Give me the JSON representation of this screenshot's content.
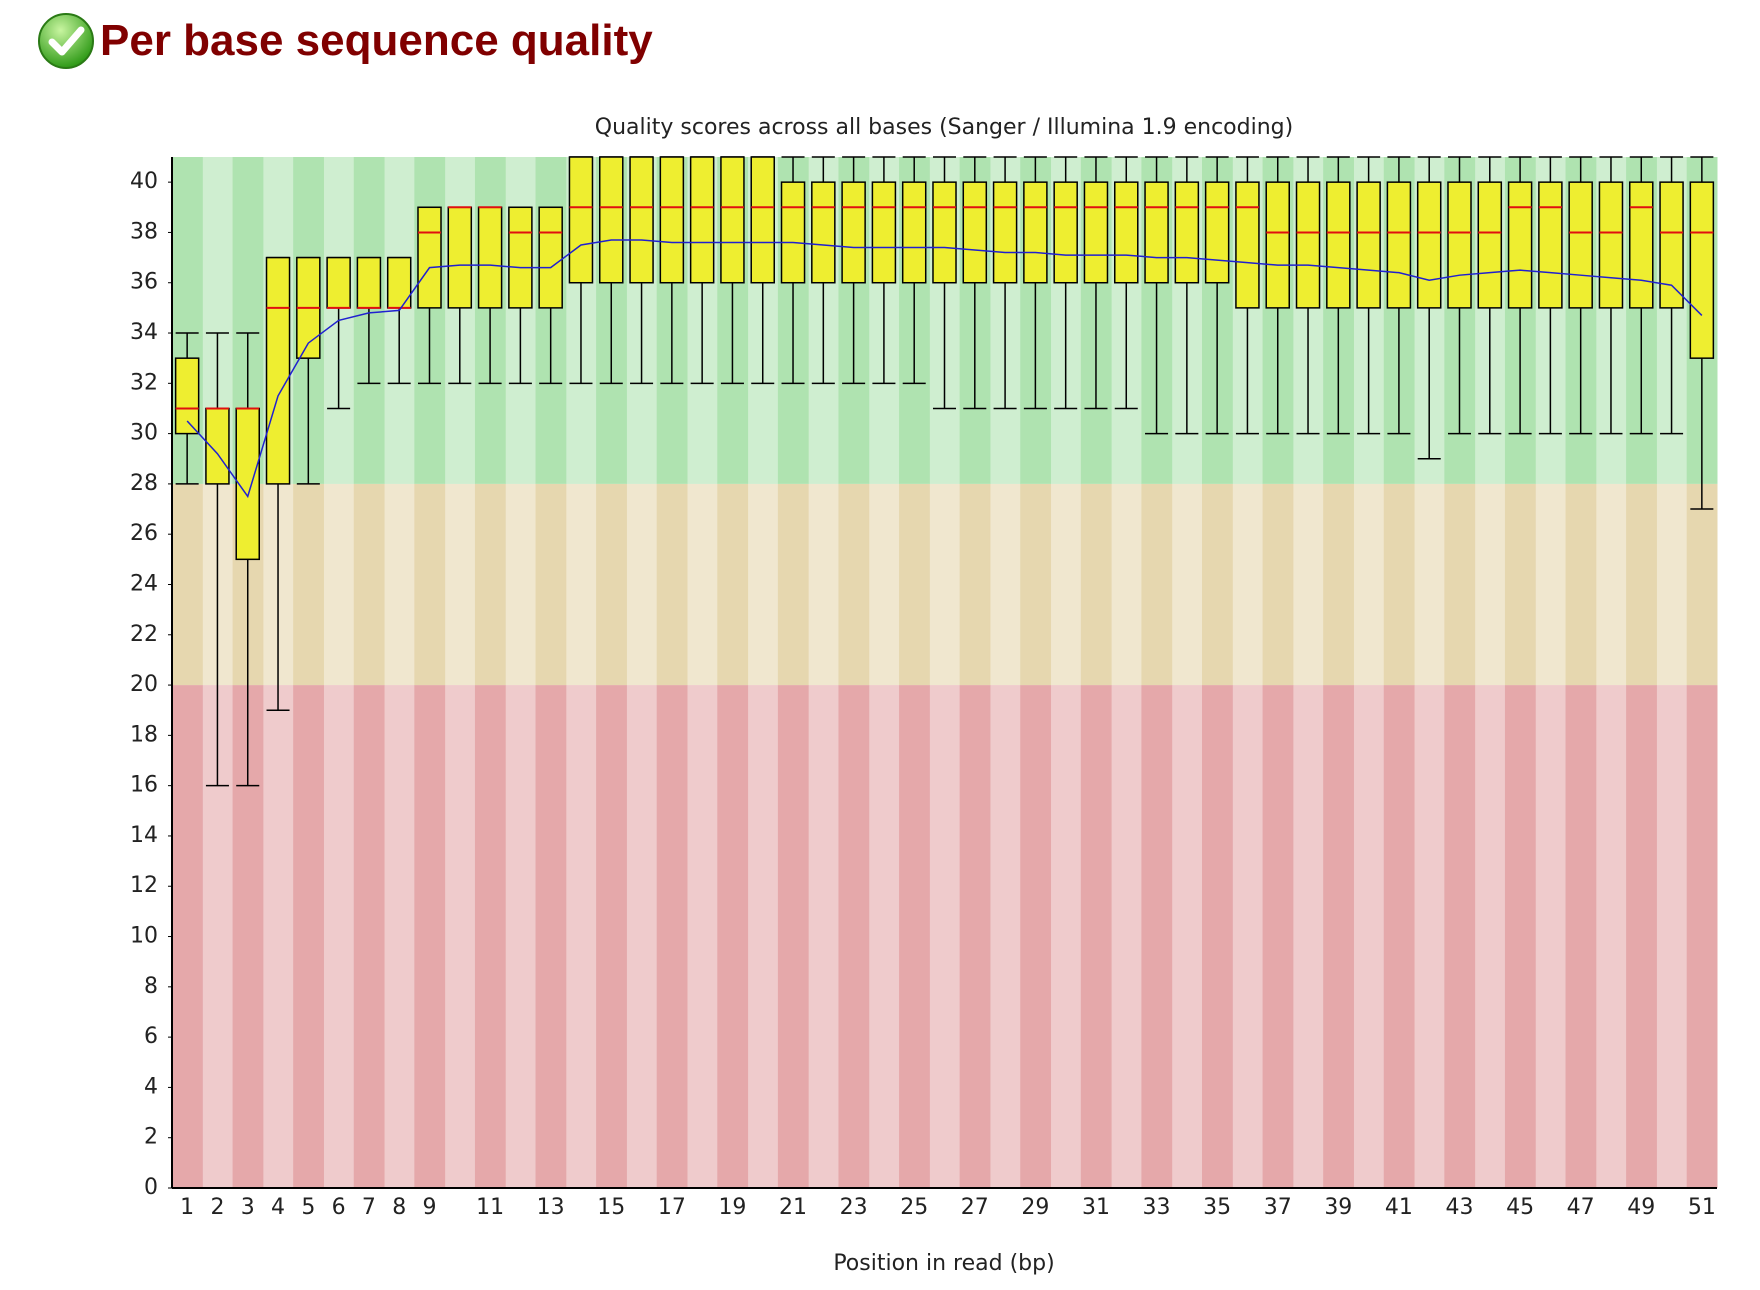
{
  "header": {
    "title": "Per base sequence quality"
  },
  "chart_data": {
    "type": "box",
    "title": "Quality scores across all bases (Sanger / Illumina 1.9 encoding)",
    "x_label": "Position in read (bp)",
    "categories": [
      1,
      2,
      3,
      4,
      5,
      6,
      7,
      8,
      9,
      null,
      11,
      null,
      13,
      null,
      15,
      null,
      17,
      null,
      19,
      null,
      21,
      null,
      23,
      null,
      25,
      null,
      27,
      null,
      29,
      null,
      31,
      null,
      33,
      null,
      35,
      null,
      37,
      null,
      39,
      null,
      41,
      null,
      43,
      null,
      45,
      null,
      47,
      null,
      49,
      null,
      51
    ],
    "lower_whisker": [
      28,
      16,
      16,
      19,
      28,
      31,
      32,
      32,
      32,
      32,
      32,
      32,
      32,
      32,
      32,
      32,
      32,
      32,
      32,
      32,
      32,
      32,
      32,
      32,
      32,
      31,
      31,
      31,
      31,
      31,
      31,
      31,
      30,
      30,
      30,
      30,
      30,
      30,
      30,
      30,
      30,
      29,
      30,
      30,
      30,
      30,
      30,
      30,
      30,
      30,
      27
    ],
    "q1": [
      30,
      28,
      25,
      28,
      33,
      35,
      35,
      35,
      35,
      35,
      35,
      35,
      35,
      36,
      36,
      36,
      36,
      36,
      36,
      36,
      36,
      36,
      36,
      36,
      36,
      36,
      36,
      36,
      36,
      36,
      36,
      36,
      36,
      36,
      36,
      35,
      35,
      35,
      35,
      35,
      35,
      35,
      35,
      35,
      35,
      35,
      35,
      35,
      35,
      35,
      33
    ],
    "median": [
      31,
      31,
      31,
      35,
      35,
      35,
      35,
      35,
      38,
      39,
      39,
      38,
      38,
      39,
      39,
      39,
      39,
      39,
      39,
      39,
      39,
      39,
      39,
      39,
      39,
      39,
      39,
      39,
      39,
      39,
      39,
      39,
      39,
      39,
      39,
      39,
      38,
      38,
      38,
      38,
      38,
      38,
      38,
      38,
      39,
      39,
      38,
      38,
      39,
      38,
      38
    ],
    "q3": [
      33,
      31,
      31,
      37,
      37,
      37,
      37,
      37,
      39,
      39,
      39,
      39,
      39,
      41,
      41,
      41,
      41,
      41,
      41,
      41,
      40,
      40,
      40,
      40,
      40,
      40,
      40,
      40,
      40,
      40,
      40,
      40,
      40,
      40,
      40,
      40,
      40,
      40,
      40,
      40,
      40,
      40,
      40,
      40,
      40,
      40,
      40,
      40,
      40,
      40,
      40
    ],
    "upper_whisker": [
      34,
      34,
      34,
      37,
      37,
      37,
      37,
      37,
      39,
      39,
      39,
      39,
      39,
      41,
      41,
      41,
      41,
      41,
      41,
      41,
      41,
      41,
      41,
      41,
      41,
      41,
      41,
      41,
      41,
      41,
      41,
      41,
      41,
      41,
      41,
      41,
      41,
      41,
      41,
      41,
      41,
      41,
      41,
      41,
      41,
      41,
      41,
      41,
      41,
      41,
      41
    ],
    "mean": [
      30.5,
      29.2,
      27.5,
      31.5,
      33.6,
      34.5,
      34.8,
      34.9,
      36.6,
      36.7,
      36.7,
      36.6,
      36.6,
      37.5,
      37.7,
      37.7,
      37.6,
      37.6,
      37.6,
      37.6,
      37.6,
      37.5,
      37.4,
      37.4,
      37.4,
      37.4,
      37.3,
      37.2,
      37.2,
      37.1,
      37.1,
      37.1,
      37.0,
      37.0,
      36.9,
      36.8,
      36.7,
      36.7,
      36.6,
      36.5,
      36.4,
      36.1,
      36.3,
      36.4,
      36.5,
      36.4,
      36.3,
      36.2,
      36.1,
      35.9,
      34.7
    ],
    "box_color": "#eeee30",
    "median_color": "#e01010",
    "mean_color": "#2020d0",
    "zones": [
      {
        "from": 0,
        "to": 20,
        "color": "#e5a8aa"
      },
      {
        "from": 20,
        "to": 28,
        "color": "#e6d7af"
      },
      {
        "from": 28,
        "to": 41,
        "color": "#afe3b0"
      }
    ],
    "ylim": [
      0,
      41
    ],
    "yticks": [
      0,
      2,
      4,
      6,
      8,
      10,
      12,
      14,
      16,
      18,
      20,
      22,
      24,
      26,
      28,
      30,
      32,
      34,
      36,
      38,
      40
    ]
  }
}
